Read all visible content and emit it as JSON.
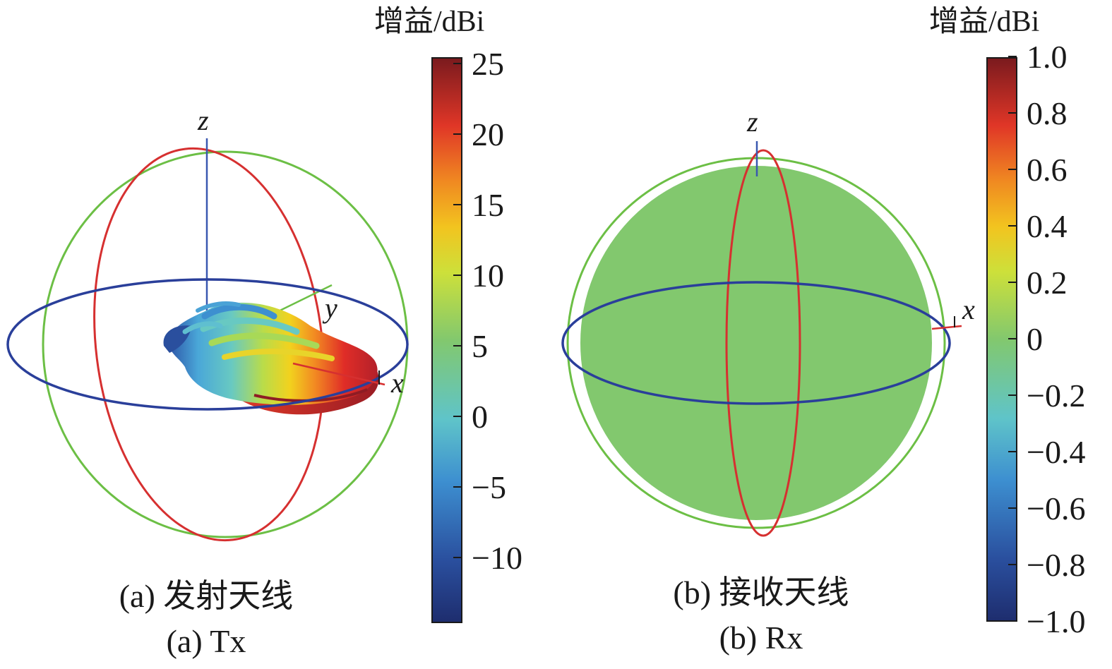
{
  "panels": [
    {
      "id": "tx",
      "caption_cn": "(a) 发射天线",
      "caption_en": "(a) Tx",
      "axis_labels": {
        "z": "z",
        "y": "y",
        "x": "x"
      },
      "colorbar": {
        "title": "增益/dBi",
        "min": -15,
        "max": 25,
        "ticks": [
          "25",
          "20",
          "15",
          "10",
          "5",
          "0",
          "−5",
          "−10"
        ],
        "tick_values": [
          25,
          20,
          15,
          10,
          5,
          0,
          -5,
          -10
        ]
      }
    },
    {
      "id": "rx",
      "caption_cn": "(b) 接收天线",
      "caption_en": "(b) Rx",
      "axis_labels": {
        "z": "z",
        "x": "x"
      },
      "colorbar": {
        "title": "增益/dBi",
        "min": -1.0,
        "max": 1.0,
        "ticks": [
          "1.0",
          "0.8",
          "0.6",
          "0.4",
          "0.2",
          "0",
          "−0.2",
          "−0.4",
          "−0.6",
          "−0.8",
          "−1.0"
        ],
        "tick_values": [
          1.0,
          0.8,
          0.6,
          0.4,
          0.2,
          0,
          -0.2,
          -0.4,
          -0.6,
          -0.8,
          -1.0
        ]
      }
    }
  ],
  "colors": {
    "ring_green": "#6cbf45",
    "ring_red": "#d63030",
    "ring_blue": "#2a3f9a",
    "sphere_fill": "#82c86e",
    "axis_z": "#3a58b0",
    "axis_x": "#d63030",
    "axis_y": "#6cbf45"
  }
}
